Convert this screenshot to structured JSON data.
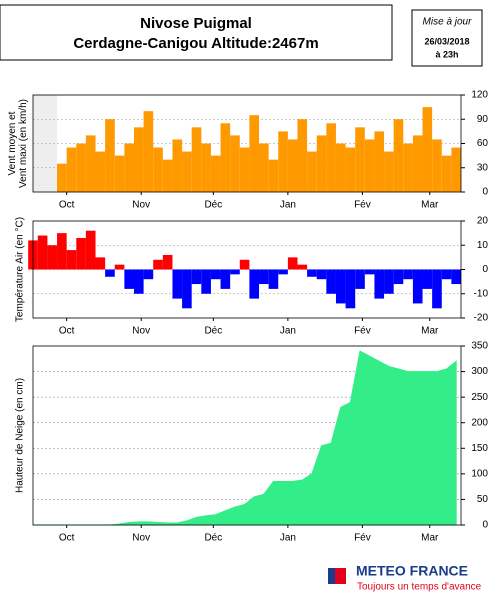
{
  "header": {
    "title": [
      "Nivose Puigmal",
      "Cerdagne-Canigou Altitude:2467m"
    ],
    "update": [
      "Mise à jour",
      "26/03/2018",
      "à 23h"
    ]
  },
  "logo": {
    "name": "METEO FRANCE",
    "slogan": "Toujours un temps d'avance"
  },
  "chart_data": [
    {
      "type": "bar",
      "ylabel": [
        "Vent moyen et",
        "Vent maxi (en km/h)"
      ],
      "color": "#ff9900",
      "x": [
        0,
        4,
        8,
        12,
        16,
        20,
        24,
        28,
        32,
        36,
        40,
        44,
        48,
        52,
        56,
        60,
        64,
        68,
        72,
        76,
        80,
        84,
        88,
        92,
        96,
        100,
        104,
        108,
        112,
        116,
        120,
        124,
        128,
        132,
        136,
        140,
        144,
        148,
        152,
        156,
        160,
        164,
        168,
        172,
        176
      ],
      "values": [
        null,
        null,
        null,
        35,
        55,
        60,
        70,
        50,
        90,
        45,
        60,
        80,
        100,
        55,
        40,
        65,
        50,
        80,
        60,
        45,
        85,
        70,
        55,
        95,
        60,
        40,
        75,
        65,
        90,
        50,
        70,
        85,
        60,
        55,
        80,
        65,
        75,
        50,
        90,
        60,
        70,
        105,
        65,
        45,
        55
      ],
      "xlim": [
        0,
        178
      ],
      "xticks": [
        {
          "value": 14,
          "label": "Oct"
        },
        {
          "value": 45,
          "label": "Nov"
        },
        {
          "value": 75,
          "label": "Déc"
        },
        {
          "value": 106,
          "label": "Jan"
        },
        {
          "value": 137,
          "label": "Fév"
        },
        {
          "value": 165,
          "label": "Mar"
        }
      ],
      "ylim": [
        0,
        120
      ],
      "yticks": [
        0,
        30,
        60,
        90,
        120
      ],
      "grid": true
    },
    {
      "type": "signed-bar",
      "ylabel": [
        "Température Air (en °C)"
      ],
      "positive_color": "#ff0000",
      "negative_color": "#0000ff",
      "x": [
        0,
        4,
        8,
        12,
        16,
        20,
        24,
        28,
        32,
        36,
        40,
        44,
        48,
        52,
        56,
        60,
        64,
        68,
        72,
        76,
        80,
        84,
        88,
        92,
        96,
        100,
        104,
        108,
        112,
        116,
        120,
        124,
        128,
        132,
        136,
        140,
        144,
        148,
        152,
        156,
        160,
        164,
        168,
        172,
        176
      ],
      "values": [
        12,
        14,
        10,
        15,
        8,
        13,
        16,
        5,
        -3,
        2,
        -8,
        -10,
        -4,
        4,
        6,
        -12,
        -16,
        -6,
        -10,
        -4,
        -8,
        -2,
        4,
        -12,
        -6,
        -8,
        -2,
        5,
        2,
        -3,
        -4,
        -10,
        -14,
        -16,
        -8,
        -2,
        -12,
        -10,
        -6,
        -4,
        -14,
        -8,
        -16,
        -4,
        -6
      ],
      "xlim": [
        0,
        178
      ],
      "xticks": [
        {
          "value": 14,
          "label": "Oct"
        },
        {
          "value": 45,
          "label": "Nov"
        },
        {
          "value": 75,
          "label": "Déc"
        },
        {
          "value": 106,
          "label": "Jan"
        },
        {
          "value": 137,
          "label": "Fév"
        },
        {
          "value": 165,
          "label": "Mar"
        }
      ],
      "ylim": [
        -20,
        20
      ],
      "yticks": [
        -20,
        -10,
        0,
        10,
        20
      ],
      "grid": true
    },
    {
      "type": "area",
      "ylabel": [
        "Hauteur de Neige (en cm)"
      ],
      "color": "#33ee88",
      "x": [
        0,
        4,
        8,
        12,
        16,
        20,
        24,
        28,
        32,
        36,
        40,
        44,
        48,
        52,
        56,
        60,
        64,
        68,
        72,
        76,
        80,
        84,
        88,
        92,
        96,
        100,
        104,
        108,
        112,
        116,
        120,
        124,
        128,
        132,
        136,
        140,
        144,
        148,
        152,
        156,
        160,
        164,
        168,
        172,
        176
      ],
      "values": [
        0,
        0,
        0,
        0,
        0,
        0,
        0,
        0,
        0,
        2,
        5,
        6,
        6,
        5,
        4,
        4,
        8,
        15,
        18,
        20,
        28,
        35,
        40,
        55,
        60,
        85,
        85,
        85,
        88,
        100,
        155,
        160,
        230,
        240,
        340,
        330,
        320,
        310,
        305,
        300,
        300,
        300,
        300,
        305,
        320
      ],
      "xlim": [
        0,
        178
      ],
      "xticks": [
        {
          "value": 14,
          "label": "Oct"
        },
        {
          "value": 45,
          "label": "Nov"
        },
        {
          "value": 75,
          "label": "Déc"
        },
        {
          "value": 106,
          "label": "Jan"
        },
        {
          "value": 137,
          "label": "Fév"
        },
        {
          "value": 165,
          "label": "Mar"
        }
      ],
      "ylim": [
        0,
        350
      ],
      "yticks": [
        0,
        50,
        100,
        150,
        200,
        250,
        300,
        350
      ],
      "grid": true
    }
  ]
}
